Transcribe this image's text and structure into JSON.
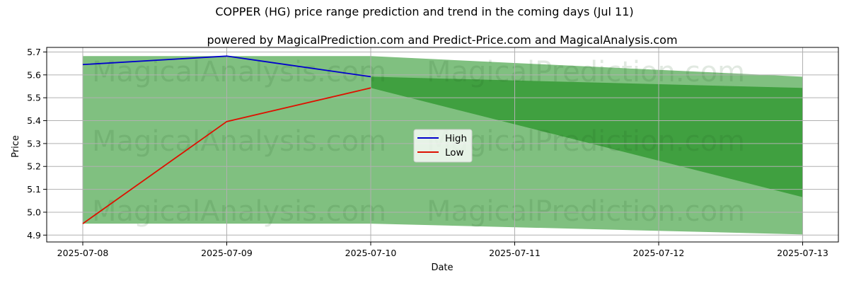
{
  "chart_data": {
    "type": "area",
    "title": "COPPER (HG) price range prediction and trend in the coming days (Jul 11)",
    "subtitle": "powered by MagicalPrediction.com and Predict-Price.com and MagicalAnalysis.com",
    "xlabel": "Date",
    "ylabel": "Price",
    "x_ticks": [
      "2025-07-08",
      "2025-07-09",
      "2025-07-10",
      "2025-07-11",
      "2025-07-12",
      "2025-07-13"
    ],
    "y_ticks": [
      "4.9",
      "5.0",
      "5.1",
      "5.2",
      "5.3",
      "5.4",
      "5.5",
      "5.6",
      "5.7"
    ],
    "ylim": [
      4.87,
      5.72
    ],
    "grid": true,
    "legend_position": "center",
    "series": [
      {
        "name": "High",
        "color": "#0000cc",
        "x": [
          "2025-07-08",
          "2025-07-09",
          "2025-07-10"
        ],
        "values": [
          5.645,
          5.682,
          5.592
        ]
      },
      {
        "name": "Low",
        "color": "#dd1100",
        "x": [
          "2025-07-08",
          "2025-07-09",
          "2025-07-10"
        ],
        "values": [
          4.95,
          5.396,
          5.543
        ]
      }
    ],
    "bands": [
      {
        "color": "#80c080",
        "x": [
          "2025-07-08",
          "2025-07-09",
          "2025-07-10",
          "2025-07-13"
        ],
        "upper": [
          5.682,
          5.682,
          5.682,
          5.592
        ],
        "lower": [
          4.95,
          4.95,
          4.95,
          4.903
        ]
      },
      {
        "color": "#40a040",
        "x": [
          "2025-07-10",
          "2025-07-13"
        ],
        "upper": [
          5.592,
          5.543
        ],
        "lower": [
          5.543,
          5.066
        ]
      }
    ],
    "watermarks": [
      "MagicalAnalysis.com",
      "MagicalPrediction.com"
    ]
  }
}
